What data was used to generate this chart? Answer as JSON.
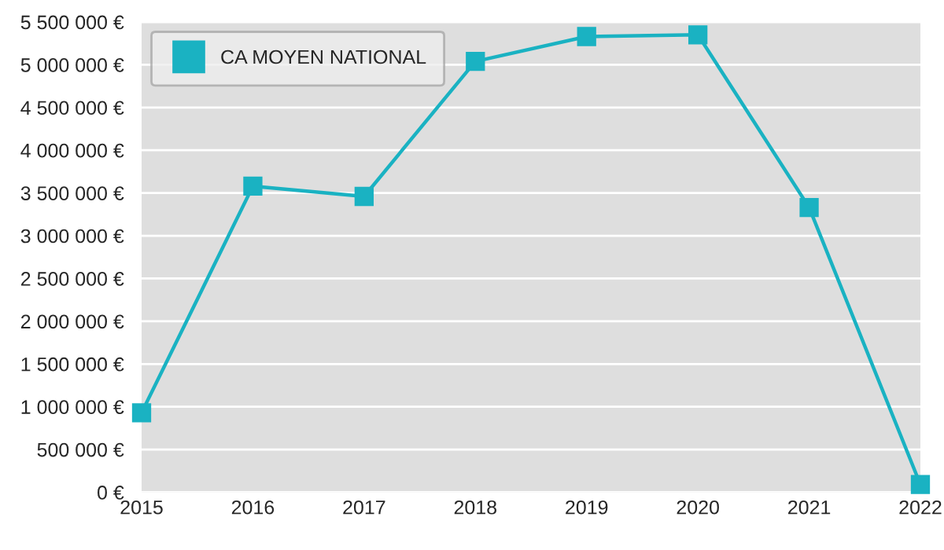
{
  "chart_data": {
    "type": "line",
    "x": [
      2015,
      2016,
      2017,
      2018,
      2019,
      2020,
      2021,
      2022
    ],
    "series": [
      {
        "name": "CA MOYEN NATIONAL",
        "color": "#1ab2c2",
        "values": [
          930000,
          3580000,
          3460000,
          5040000,
          5330000,
          5350000,
          3330000,
          90000
        ]
      }
    ],
    "xlim": [
      2015,
      2022
    ],
    "xticks": [
      2015,
      2016,
      2017,
      2018,
      2019,
      2020,
      2021,
      2022
    ],
    "ylim": [
      0,
      5500000
    ],
    "yticks": [
      {
        "value": 0,
        "label": "0 €"
      },
      {
        "value": 500000,
        "label": "500 000 €"
      },
      {
        "value": 1000000,
        "label": "1 000 000 €"
      },
      {
        "value": 1500000,
        "label": "1 500 000 €"
      },
      {
        "value": 2000000,
        "label": "2 000 000 €"
      },
      {
        "value": 2500000,
        "label": "2 500 000 €"
      },
      {
        "value": 3000000,
        "label": "3 000 000 €"
      },
      {
        "value": 3500000,
        "label": "3 500 000 €"
      },
      {
        "value": 4000000,
        "label": "4 000 000 €"
      },
      {
        "value": 4500000,
        "label": "4 500 000 €"
      },
      {
        "value": 5000000,
        "label": "5 000 000 €"
      },
      {
        "value": 5500000,
        "label": "5 500 000 €"
      }
    ],
    "grid": "y",
    "legend": "top left",
    "marker": "square",
    "line_style": "solid"
  }
}
